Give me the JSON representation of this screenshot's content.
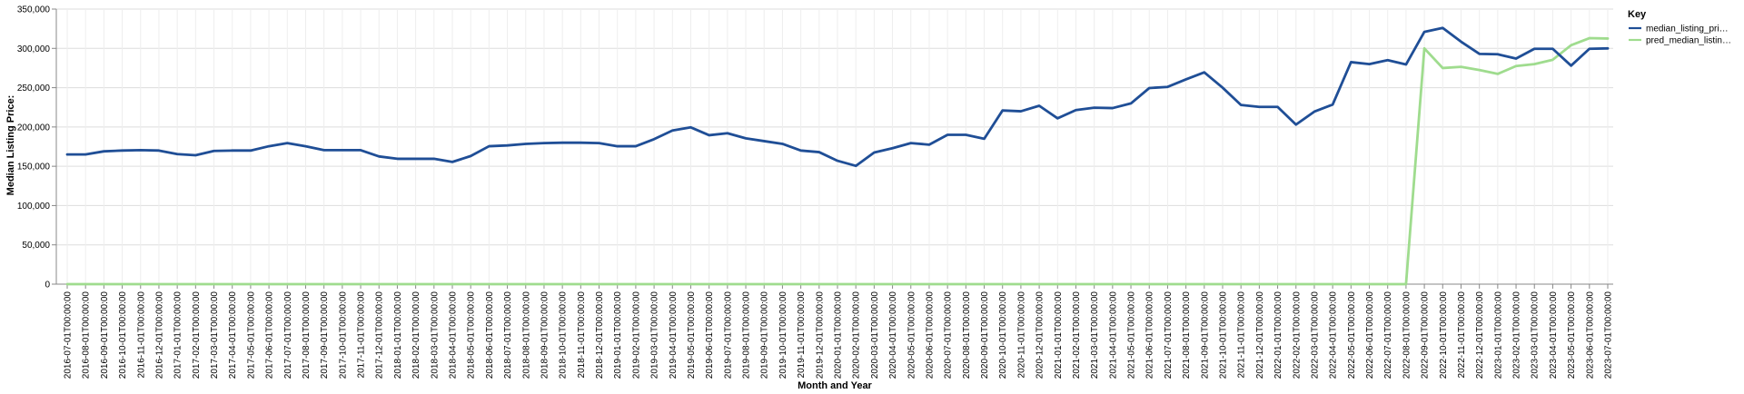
{
  "chart_data": {
    "type": "line",
    "xlabel": "Month and Year",
    "ylabel": "Median Listing Price:",
    "ylim": [
      0,
      350000
    ],
    "y_ticks": [
      "0",
      "50,000",
      "100,000",
      "150,000",
      "200,000",
      "250,000",
      "300,000",
      "350,000"
    ],
    "y_tick_values": [
      0,
      50000,
      100000,
      150000,
      200000,
      250000,
      300000,
      350000
    ],
    "grid": true,
    "legend": {
      "title": "Key",
      "placement": "right"
    },
    "x": [
      "2016-07-01T00:00:00",
      "2016-08-01T00:00:00",
      "2016-09-01T00:00:00",
      "2016-10-01T00:00:00",
      "2016-11-01T00:00:00",
      "2016-12-01T00:00:00",
      "2017-01-01T00:00:00",
      "2017-02-01T00:00:00",
      "2017-03-01T00:00:00",
      "2017-04-01T00:00:00",
      "2017-05-01T00:00:00",
      "2017-06-01T00:00:00",
      "2017-07-01T00:00:00",
      "2017-08-01T00:00:00",
      "2017-09-01T00:00:00",
      "2017-10-01T00:00:00",
      "2017-11-01T00:00:00",
      "2017-12-01T00:00:00",
      "2018-01-01T00:00:00",
      "2018-02-01T00:00:00",
      "2018-03-01T00:00:00",
      "2018-04-01T00:00:00",
      "2018-05-01T00:00:00",
      "2018-06-01T00:00:00",
      "2018-07-01T00:00:00",
      "2018-08-01T00:00:00",
      "2018-09-01T00:00:00",
      "2018-10-01T00:00:00",
      "2018-11-01T00:00:00",
      "2018-12-01T00:00:00",
      "2019-01-01T00:00:00",
      "2019-02-01T00:00:00",
      "2019-03-01T00:00:00",
      "2019-04-01T00:00:00",
      "2019-05-01T00:00:00",
      "2019-06-01T00:00:00",
      "2019-07-01T00:00:00",
      "2019-08-01T00:00:00",
      "2019-09-01T00:00:00",
      "2019-10-01T00:00:00",
      "2019-11-01T00:00:00",
      "2019-12-01T00:00:00",
      "2020-01-01T00:00:00",
      "2020-02-01T00:00:00",
      "2020-03-01T00:00:00",
      "2020-04-01T00:00:00",
      "2020-05-01T00:00:00",
      "2020-06-01T00:00:00",
      "2020-07-01T00:00:00",
      "2020-08-01T00:00:00",
      "2020-09-01T00:00:00",
      "2020-10-01T00:00:00",
      "2020-11-01T00:00:00",
      "2020-12-01T00:00:00",
      "2021-01-01T00:00:00",
      "2021-02-01T00:00:00",
      "2021-03-01T00:00:00",
      "2021-04-01T00:00:00",
      "2021-05-01T00:00:00",
      "2021-06-01T00:00:00",
      "2021-07-01T00:00:00",
      "2021-08-01T00:00:00",
      "2021-09-01T00:00:00",
      "2021-10-01T00:00:00",
      "2021-11-01T00:00:00",
      "2021-12-01T00:00:00",
      "2022-01-01T00:00:00",
      "2022-02-01T00:00:00",
      "2022-03-01T00:00:00",
      "2022-04-01T00:00:00",
      "2022-05-01T00:00:00",
      "2022-06-01T00:00:00",
      "2022-07-01T00:00:00",
      "2022-08-01T00:00:00",
      "2022-09-01T00:00:00",
      "2022-10-01T00:00:00",
      "2022-11-01T00:00:00",
      "2022-12-01T00:00:00",
      "2023-01-01T00:00:00",
      "2023-02-01T00:00:00",
      "2023-03-01T00:00:00",
      "2023-04-01T00:00:00",
      "2023-05-01T00:00:00",
      "2023-06-01T00:00:00",
      "2023-07-01T00:00:00"
    ],
    "series": [
      {
        "name": "median_listing_pri…",
        "color": "#1f4e96",
        "values": [
          165000,
          165000,
          169000,
          170000,
          170500,
          170000,
          165500,
          164000,
          169500,
          170000,
          170000,
          175500,
          179500,
          175500,
          170500,
          170500,
          170500,
          162500,
          159500,
          159500,
          159500,
          155500,
          163000,
          175500,
          176500,
          178500,
          179500,
          180000,
          180000,
          179500,
          175500,
          175500,
          184500,
          195500,
          199500,
          189500,
          192000,
          185500,
          182000,
          178500,
          170000,
          168000,
          157000,
          150500,
          167500,
          173000,
          179500,
          177500,
          190000,
          190000,
          185000,
          221000,
          220000,
          227000,
          211000,
          221500,
          224500,
          224000,
          230000,
          249500,
          251000,
          260500,
          269500,
          250000,
          228000,
          225500,
          225500,
          203000,
          219500,
          228500,
          282500,
          280000,
          285000,
          279500,
          321000,
          326000,
          308500,
          293000,
          292500,
          287000,
          299500,
          299500,
          278000,
          299500,
          300000
        ]
      },
      {
        "name": "pred_median_listin…",
        "color": "#9fdc8e",
        "values": [
          0,
          0,
          0,
          0,
          0,
          0,
          0,
          0,
          0,
          0,
          0,
          0,
          0,
          0,
          0,
          0,
          0,
          0,
          0,
          0,
          0,
          0,
          0,
          0,
          0,
          0,
          0,
          0,
          0,
          0,
          0,
          0,
          0,
          0,
          0,
          0,
          0,
          0,
          0,
          0,
          0,
          0,
          0,
          0,
          0,
          0,
          0,
          0,
          0,
          0,
          0,
          0,
          0,
          0,
          0,
          0,
          0,
          0,
          0,
          0,
          0,
          0,
          0,
          0,
          0,
          0,
          0,
          0,
          0,
          0,
          0,
          0,
          0,
          0,
          300000,
          275000,
          276500,
          272500,
          267500,
          277500,
          280000,
          285500,
          304000,
          313000,
          312500
        ]
      }
    ]
  }
}
